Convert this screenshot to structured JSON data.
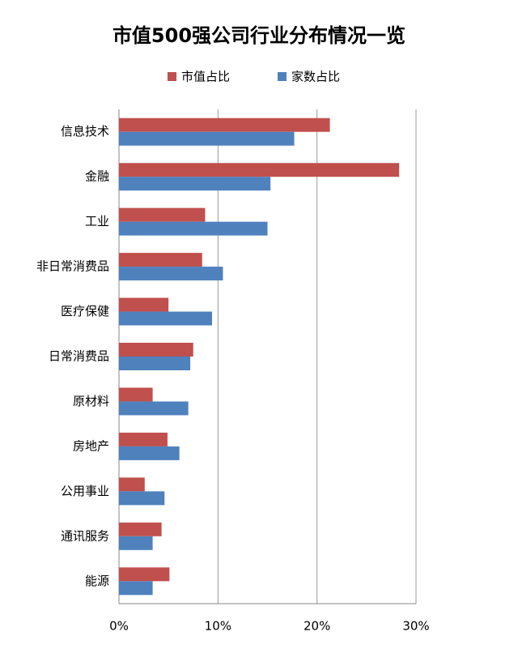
{
  "chart_data": {
    "type": "hbar",
    "title": "市值500强公司行业分布情况一览",
    "categories": [
      "信息技术",
      "金融",
      "工业",
      "非日常消费品",
      "医疗保健",
      "日常消费品",
      "原材料",
      "房地产",
      "公用事业",
      "通讯服务",
      "能源"
    ],
    "series": [
      {
        "name": "市值占比",
        "color": "#c0504d",
        "values": [
          21.3,
          28.3,
          8.7,
          8.4,
          5.0,
          7.5,
          3.4,
          4.9,
          2.6,
          4.3,
          5.1
        ]
      },
      {
        "name": "家数占比",
        "color": "#4f81bd",
        "values": [
          17.7,
          15.3,
          15.0,
          10.5,
          9.4,
          7.2,
          7.0,
          6.1,
          4.6,
          3.4,
          3.4
        ]
      }
    ],
    "xlim": [
      0,
      30
    ],
    "xticks": [
      {
        "value": 0,
        "label": "0%"
      },
      {
        "value": 10,
        "label": "10%"
      },
      {
        "value": 20,
        "label": "20%"
      },
      {
        "value": 30,
        "label": "30%"
      }
    ],
    "grid": true,
    "legend": "top"
  }
}
